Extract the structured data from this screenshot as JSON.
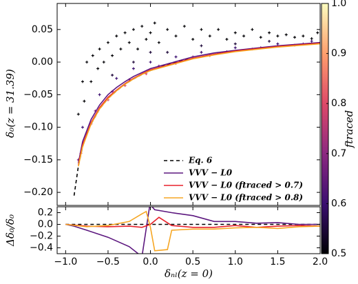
{
  "chart_data": [
    {
      "type": "scatter",
      "ylabel": "δ₀(z = 31.39)",
      "xlim": [
        -1.1,
        2.0
      ],
      "ylim": [
        -0.22,
        0.09
      ],
      "xticks": [
        {
          "value": -1.0,
          "label": "−1.0"
        },
        {
          "value": -0.5,
          "label": "−0.5"
        },
        {
          "value": 0.0,
          "label": "0.0"
        },
        0.5,
        {
          "value": 1.0,
          "label": "1.0"
        },
        1.5,
        {
          "value": 2.0,
          "label": "2.0"
        }
      ],
      "yticks": [
        {
          "value": -0.2,
          "label": "−0.20"
        },
        {
          "value": -0.15,
          "label": "−0.15"
        },
        {
          "value": -0.1,
          "label": "−0.10"
        },
        {
          "value": -0.05,
          "label": "−0.05"
        },
        {
          "value": 0.0,
          "label": "0.00"
        },
        0.05
      ],
      "legend": "lower right",
      "colorbar": {
        "label": "ftraced",
        "clim": [
          0.5,
          1.0
        ],
        "ticks": [
          0.5,
          0.6,
          0.7,
          0.8,
          0.9,
          {
            "value": 1.0,
            "label": "1.0"
          }
        ],
        "colormap": [
          "#000004",
          "#3b0f70",
          "#8c2981",
          "#de4968",
          "#fe9f6d",
          "#fcfdbf"
        ]
      },
      "points": {
        "x": [
          -0.85,
          -0.8,
          -0.78,
          -0.75,
          -0.7,
          -0.68,
          -0.62,
          -0.6,
          -0.55,
          -0.5,
          -0.45,
          -0.4,
          -0.35,
          -0.3,
          -0.25,
          -0.2,
          -0.15,
          -0.1,
          -0.05,
          0.0,
          0.05,
          0.1,
          0.2,
          0.3,
          0.4,
          0.5,
          0.6,
          0.7,
          0.8,
          0.9,
          1.0,
          1.1,
          1.2,
          1.3,
          1.4,
          1.5,
          1.6,
          1.7,
          1.8,
          1.9,
          1.97,
          -0.2,
          0.2,
          0.6,
          1.0,
          1.4,
          -0.45,
          0.0,
          -0.8,
          -0.6,
          -0.4,
          -0.2,
          0.0,
          0.3,
          0.6,
          1.0,
          1.5,
          1.9,
          -0.85,
          -0.65,
          -0.45,
          -0.25,
          0.1,
          0.5,
          0.9,
          1.3,
          1.8,
          -0.82,
          -0.7,
          -0.5,
          -0.3,
          -0.05,
          0.3,
          0.7,
          1.2,
          1.7,
          2.0
        ],
        "y": [
          -0.08,
          -0.03,
          -0.06,
          0.0,
          -0.03,
          0.01,
          -0.01,
          0.02,
          0.0,
          0.03,
          0.01,
          0.04,
          0.02,
          0.045,
          0.03,
          0.05,
          0.02,
          0.055,
          0.035,
          0.045,
          0.06,
          0.03,
          0.05,
          0.04,
          0.055,
          0.035,
          0.05,
          0.04,
          0.05,
          0.035,
          0.045,
          0.04,
          0.05,
          0.038,
          0.045,
          0.04,
          0.042,
          0.038,
          0.04,
          0.036,
          0.045,
          0.0,
          0.015,
          0.025,
          0.028,
          0.032,
          -0.02,
          0.015,
          -0.1,
          -0.05,
          -0.025,
          -0.01,
          0.0,
          0.008,
          0.015,
          0.022,
          0.028,
          0.032,
          -0.15,
          -0.075,
          -0.045,
          -0.027,
          -0.006,
          0.008,
          0.016,
          0.022,
          0.028,
          -0.14,
          -0.095,
          -0.058,
          -0.036,
          -0.018,
          -0.002,
          0.01,
          0.02,
          0.026,
          0.029
        ],
        "c": [
          0.5,
          0.5,
          0.5,
          0.5,
          0.5,
          0.5,
          0.5,
          0.5,
          0.5,
          0.5,
          0.5,
          0.5,
          0.5,
          0.5,
          0.5,
          0.5,
          0.5,
          0.5,
          0.5,
          0.5,
          0.5,
          0.5,
          0.5,
          0.5,
          0.5,
          0.5,
          0.5,
          0.5,
          0.5,
          0.5,
          0.5,
          0.5,
          0.5,
          0.5,
          0.5,
          0.5,
          0.5,
          0.5,
          0.5,
          0.5,
          0.5,
          0.55,
          0.55,
          0.55,
          0.55,
          0.55,
          0.55,
          0.55,
          0.6,
          0.6,
          0.6,
          0.6,
          0.6,
          0.6,
          0.6,
          0.6,
          0.6,
          0.6,
          0.7,
          0.7,
          0.7,
          0.7,
          0.7,
          0.7,
          0.7,
          0.7,
          0.7,
          0.8,
          0.8,
          0.8,
          0.8,
          0.8,
          0.8,
          0.8,
          0.8,
          0.8,
          0.8
        ]
      },
      "series": [
        {
          "name": "Eq. 6",
          "color": "#000000",
          "dash": true,
          "x": [
            -0.9,
            -0.85,
            -0.8,
            -0.75,
            -0.7,
            -0.6,
            -0.5,
            -0.4,
            -0.3,
            -0.2,
            -0.1,
            0,
            0.2,
            0.4,
            0.6,
            0.8,
            1.0,
            1.25,
            1.5,
            1.75,
            2.0
          ],
          "y": [
            -0.205,
            -0.16,
            -0.13,
            -0.11,
            -0.095,
            -0.072,
            -0.056,
            -0.044,
            -0.034,
            -0.026,
            -0.019,
            -0.013,
            -0.004,
            0.003,
            0.008,
            0.013,
            0.017,
            0.021,
            0.024,
            0.027,
            0.029
          ]
        },
        {
          "name": "VVV − L0",
          "color": "#5b167e",
          "x": [
            -0.85,
            -0.8,
            -0.7,
            -0.6,
            -0.5,
            -0.4,
            -0.3,
            -0.2,
            -0.1,
            0,
            0.25,
            0.5,
            0.75,
            1.0,
            1.5,
            2.0
          ],
          "y": [
            -0.155,
            -0.122,
            -0.088,
            -0.066,
            -0.05,
            -0.039,
            -0.03,
            -0.022,
            -0.016,
            -0.01,
            -0.001,
            0.008,
            0.014,
            0.018,
            0.025,
            0.03
          ]
        },
        {
          "name": "VVV − L0 (ftraced > 0.7)",
          "color": "#e8202a",
          "x": [
            -0.85,
            -0.8,
            -0.7,
            -0.6,
            -0.5,
            -0.4,
            -0.3,
            -0.2,
            -0.1,
            0,
            0.25,
            0.5,
            0.75,
            1.0,
            1.5,
            2.0
          ],
          "y": [
            -0.158,
            -0.127,
            -0.093,
            -0.07,
            -0.054,
            -0.043,
            -0.033,
            -0.025,
            -0.018,
            -0.012,
            -0.003,
            0.006,
            0.012,
            0.017,
            0.024,
            0.029
          ]
        },
        {
          "name": "VVV − L0 (ftraced > 0.8)",
          "color": "#f6a623",
          "x": [
            -0.85,
            -0.8,
            -0.7,
            -0.6,
            -0.5,
            -0.4,
            -0.3,
            -0.2,
            -0.1,
            0,
            0.25,
            0.5,
            0.75,
            1.0,
            1.5,
            2.0
          ],
          "y": [
            -0.16,
            -0.13,
            -0.095,
            -0.072,
            -0.056,
            -0.044,
            -0.034,
            -0.026,
            -0.019,
            -0.013,
            -0.004,
            0.005,
            0.011,
            0.016,
            0.023,
            0.028
          ]
        }
      ]
    },
    {
      "type": "line",
      "ylabel": "Δδ₀/δ₀",
      "xlabel": "δₙₗ(z = 0)",
      "xlim": [
        -1.1,
        2.0
      ],
      "ylim": [
        -0.5,
        0.3
      ],
      "xticks": [
        {
          "value": -1.0,
          "label": "−1.0"
        },
        {
          "value": -0.5,
          "label": "−0.5"
        },
        {
          "value": 0.0,
          "label": "0.0"
        },
        0.5,
        {
          "value": 1.0,
          "label": "1.0"
        },
        1.5,
        {
          "value": 2.0,
          "label": "2.0"
        }
      ],
      "yticks": [
        {
          "value": -0.4,
          "label": "−0.4"
        },
        {
          "value": -0.2,
          "label": "−0.2"
        },
        {
          "value": 0.0,
          "label": "0.0"
        },
        0.2
      ],
      "series": [
        {
          "color": "#000000",
          "dash": true,
          "x": [
            -1.0,
            2.0
          ],
          "y": [
            0,
            0
          ]
        },
        {
          "color": "#5b167e",
          "x": [
            -1.0,
            -0.9,
            -0.75,
            -0.5,
            -0.25,
            -0.1,
            0.0,
            0.02,
            0.05,
            0.25,
            0.5,
            0.75,
            1.0,
            1.25,
            1.5,
            1.75,
            2.0
          ],
          "y": [
            0,
            -0.03,
            -0.1,
            -0.22,
            -0.38,
            -0.55,
            0.4,
            0.3,
            0.25,
            0.2,
            0.15,
            0.05,
            0.05,
            0.02,
            0.03,
            0.0,
            0.0
          ]
        },
        {
          "color": "#e8202a",
          "x": [
            -1.0,
            -0.75,
            -0.5,
            -0.25,
            -0.1,
            0.0,
            0.1,
            0.25,
            0.5,
            0.75,
            1.0,
            1.25,
            1.5,
            1.75,
            2.0
          ],
          "y": [
            0,
            -0.03,
            -0.04,
            -0.03,
            -0.05,
            0.0,
            0.12,
            -0.02,
            -0.05,
            -0.05,
            -0.02,
            -0.05,
            -0.03,
            -0.02,
            -0.03
          ]
        },
        {
          "color": "#f6a623",
          "x": [
            -1.0,
            -0.75,
            -0.5,
            -0.25,
            -0.1,
            -0.05,
            0.0,
            0.05,
            0.2,
            0.25,
            0.5,
            0.75,
            1.0,
            1.25,
            1.5,
            1.75,
            2.0
          ],
          "y": [
            0,
            -0.04,
            -0.02,
            0.05,
            0.18,
            0.22,
            -0.05,
            -0.45,
            -0.43,
            -0.1,
            -0.08,
            -0.08,
            -0.06,
            -0.05,
            -0.07,
            -0.04,
            -0.03
          ]
        }
      ]
    }
  ]
}
